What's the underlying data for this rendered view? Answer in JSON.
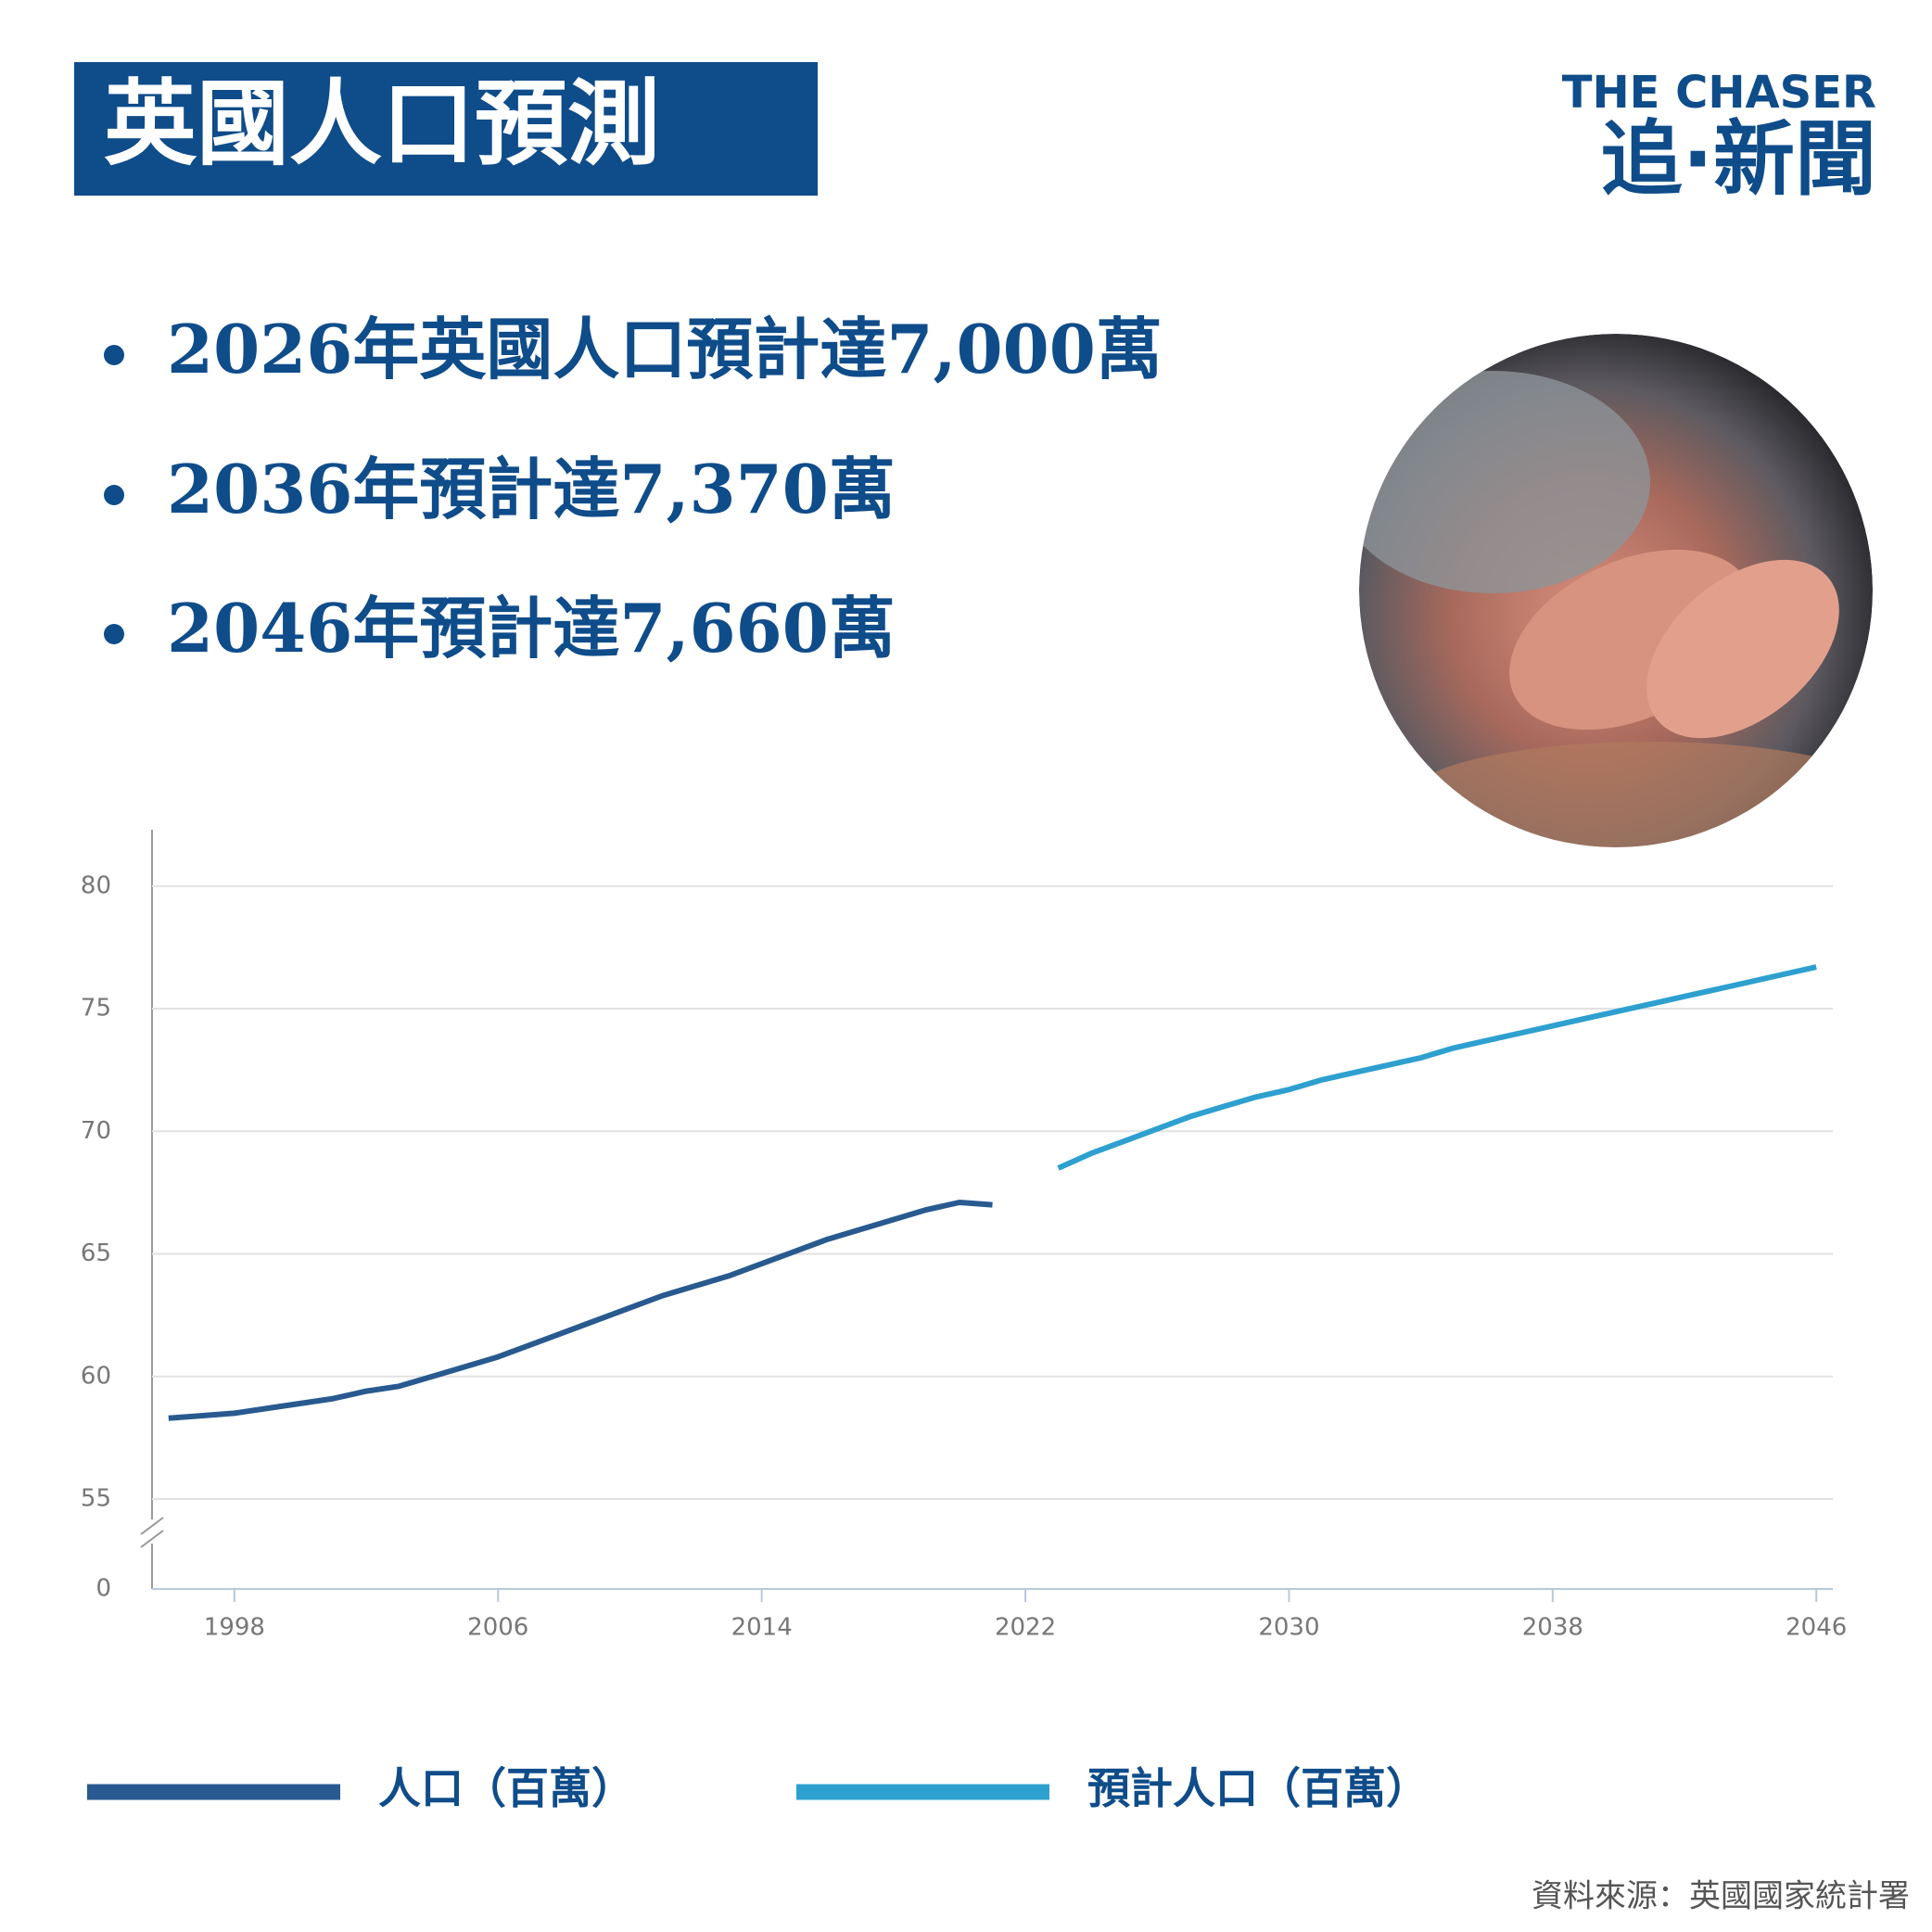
{
  "header": {
    "title": "英國人口預測",
    "logo_top": "THE CHASER",
    "logo_bottom": "追·新聞"
  },
  "bullets": [
    "2026年英國人口預計達7,000萬",
    "2036年預計達7,370萬",
    "2046年預計達7,660萬"
  ],
  "source": "資料來源：英國國家統計署",
  "chart_data": {
    "type": "line",
    "x": [
      1996,
      1997,
      1998,
      1999,
      2000,
      2001,
      2002,
      2003,
      2004,
      2005,
      2006,
      2007,
      2008,
      2009,
      2010,
      2011,
      2012,
      2013,
      2014,
      2015,
      2016,
      2017,
      2018,
      2019,
      2020,
      2021,
      2022,
      2023,
      2024,
      2025,
      2026,
      2027,
      2028,
      2029,
      2030,
      2031,
      2032,
      2033,
      2034,
      2035,
      2036,
      2037,
      2038,
      2039,
      2040,
      2041,
      2042,
      2043,
      2044,
      2045,
      2046
    ],
    "series": [
      {
        "name": "人口（百萬）",
        "color": "#285a8f",
        "values": [
          58.3,
          58.4,
          58.5,
          58.7,
          58.9,
          59.1,
          59.4,
          59.6,
          60.0,
          60.4,
          60.8,
          61.3,
          61.8,
          62.3,
          62.8,
          63.3,
          63.7,
          64.1,
          64.6,
          65.1,
          65.6,
          66.0,
          66.4,
          66.8,
          67.1,
          67.0,
          null,
          null,
          null,
          null,
          null,
          null,
          null,
          null,
          null,
          null,
          null,
          null,
          null,
          null,
          null,
          null,
          null,
          null,
          null,
          null,
          null,
          null,
          null,
          null,
          null
        ]
      },
      {
        "name": "預計人口（百萬）",
        "color": "#2ea0d0",
        "values": [
          null,
          null,
          null,
          null,
          null,
          null,
          null,
          null,
          null,
          null,
          null,
          null,
          null,
          null,
          null,
          null,
          null,
          null,
          null,
          null,
          null,
          null,
          null,
          null,
          null,
          null,
          null,
          68.5,
          69.1,
          69.6,
          70.1,
          70.6,
          71.0,
          71.4,
          71.7,
          72.1,
          72.4,
          72.7,
          73.0,
          73.4,
          73.7,
          74.0,
          74.3,
          74.6,
          74.9,
          75.2,
          75.5,
          75.8,
          76.1,
          76.4,
          76.7
        ]
      }
    ],
    "xlim": [
      1995.5,
      2046.5
    ],
    "xticks": [
      1998,
      2006,
      2014,
      2022,
      2030,
      2038,
      2046
    ],
    "ylim": [
      0,
      82.3
    ],
    "yticks": [
      0,
      55,
      60,
      65,
      70,
      75,
      80
    ],
    "y_axis_break": [
      0,
      55
    ],
    "grid": true,
    "legend": "bottom"
  }
}
